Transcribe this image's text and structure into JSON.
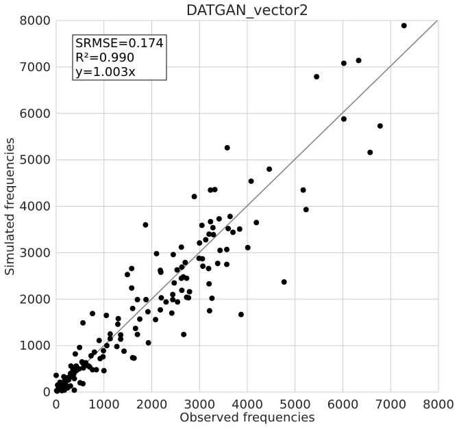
{
  "chart_data": {
    "type": "scatter",
    "title": "DATGAN_vector2",
    "xlabel": "Observed frequencies",
    "ylabel": "Simulated frequencies",
    "xlim": [
      0,
      8000
    ],
    "ylim": [
      0,
      8000
    ],
    "xticks": [
      0,
      1000,
      2000,
      3000,
      4000,
      5000,
      6000,
      7000,
      8000
    ],
    "yticks": [
      0,
      1000,
      2000,
      3000,
      4000,
      5000,
      6000,
      7000,
      8000
    ],
    "grid": true,
    "stats": [
      "SRMSE=0.174",
      "R²=0.990",
      "y=1.003x"
    ],
    "stats_position": "top-left",
    "fit_line": {
      "slope": 1.003,
      "color": "#808080"
    },
    "marker_color": "#000000",
    "grid_color": "#cccccc",
    "points": [
      [
        7280,
        7890
      ],
      [
        6330,
        7140
      ],
      [
        6020,
        7080
      ],
      [
        5450,
        6790
      ],
      [
        6780,
        5730
      ],
      [
        6020,
        5880
      ],
      [
        6570,
        5160
      ],
      [
        3580,
        5260
      ],
      [
        4460,
        4800
      ],
      [
        4080,
        4540
      ],
      [
        5170,
        4350
      ],
      [
        5230,
        3930
      ],
      [
        4770,
        2370
      ],
      [
        2890,
        4210
      ],
      [
        3230,
        4350
      ],
      [
        3320,
        4360
      ],
      [
        3410,
        3730
      ],
      [
        3640,
        3780
      ],
      [
        3230,
        3670
      ],
      [
        3050,
        3590
      ],
      [
        3280,
        3540
      ],
      [
        4190,
        3650
      ],
      [
        3600,
        3520
      ],
      [
        3840,
        3510
      ],
      [
        3700,
        3440
      ],
      [
        3200,
        3400
      ],
      [
        3130,
        3280
      ],
      [
        3290,
        3390
      ],
      [
        3000,
        3210
      ],
      [
        4010,
        3110
      ],
      [
        3430,
        3050
      ],
      [
        3570,
        3070
      ],
      [
        2990,
        2880
      ],
      [
        3060,
        2870
      ],
      [
        3380,
        2770
      ],
      [
        3570,
        2750
      ],
      [
        3070,
        2710
      ],
      [
        3190,
        2660
      ],
      [
        2700,
        2790
      ],
      [
        2620,
        3120
      ],
      [
        2450,
        2960
      ],
      [
        2180,
        2620
      ],
      [
        2100,
        2980
      ],
      [
        2630,
        2690
      ],
      [
        2530,
        2630
      ],
      [
        2190,
        2580
      ],
      [
        1870,
        3600
      ],
      [
        1580,
        2660
      ],
      [
        1490,
        2530
      ],
      [
        1580,
        2240
      ],
      [
        2470,
        2350
      ],
      [
        2620,
        2450
      ],
      [
        2660,
        2480
      ],
      [
        2730,
        2450
      ],
      [
        2440,
        2100
      ],
      [
        2630,
        2190
      ],
      [
        2790,
        2160
      ],
      [
        3200,
        2330
      ],
      [
        3260,
        2020
      ],
      [
        2730,
        2040
      ],
      [
        2770,
        2030
      ],
      [
        2540,
        1940
      ],
      [
        2300,
        1940
      ],
      [
        2440,
        1990
      ],
      [
        2200,
        2030
      ],
      [
        1880,
        1990
      ],
      [
        1700,
        1990
      ],
      [
        1600,
        1800
      ],
      [
        1920,
        1730
      ],
      [
        2180,
        1770
      ],
      [
        2420,
        1700
      ],
      [
        3210,
        1750
      ],
      [
        3870,
        1670
      ],
      [
        2670,
        1240
      ],
      [
        2080,
        1560
      ],
      [
        1750,
        1570
      ],
      [
        1660,
        1370
      ],
      [
        1300,
        1580
      ],
      [
        1290,
        1460
      ],
      [
        1050,
        1650
      ],
      [
        760,
        1690
      ],
      [
        560,
        1490
      ],
      [
        1130,
        1250
      ],
      [
        1130,
        1150
      ],
      [
        1350,
        1230
      ],
      [
        1350,
        1140
      ],
      [
        1700,
        1240
      ],
      [
        1930,
        1060
      ],
      [
        1270,
        980
      ],
      [
        1420,
        880
      ],
      [
        1600,
        740
      ],
      [
        1630,
        730
      ],
      [
        1060,
        1000
      ],
      [
        900,
        1110
      ],
      [
        800,
        860
      ],
      [
        990,
        890
      ],
      [
        980,
        760
      ],
      [
        920,
        720
      ],
      [
        840,
        480
      ],
      [
        760,
        480
      ],
      [
        1000,
        460
      ],
      [
        730,
        780
      ],
      [
        680,
        560
      ],
      [
        620,
        630
      ],
      [
        700,
        540
      ],
      [
        630,
        580
      ],
      [
        490,
        960
      ],
      [
        400,
        820
      ],
      [
        420,
        560
      ],
      [
        540,
        650
      ],
      [
        560,
        620
      ],
      [
        480,
        500
      ],
      [
        570,
        520
      ],
      [
        350,
        480
      ],
      [
        300,
        400
      ],
      [
        310,
        560
      ],
      [
        370,
        390
      ],
      [
        420,
        460
      ],
      [
        500,
        200
      ],
      [
        380,
        290
      ],
      [
        240,
        310
      ],
      [
        180,
        250
      ],
      [
        120,
        140
      ],
      [
        260,
        260
      ],
      [
        200,
        220
      ],
      [
        300,
        330
      ],
      [
        80,
        210
      ],
      [
        150,
        180
      ],
      [
        100,
        90
      ],
      [
        60,
        60
      ],
      [
        40,
        40
      ],
      [
        20,
        20
      ],
      [
        10,
        30
      ],
      [
        140,
        110
      ],
      [
        200,
        160
      ],
      [
        240,
        90
      ],
      [
        300,
        130
      ],
      [
        170,
        40
      ],
      [
        120,
        30
      ],
      [
        90,
        60
      ],
      [
        70,
        120
      ],
      [
        30,
        150
      ],
      [
        0,
        360
      ],
      [
        380,
        40
      ],
      [
        560,
        180
      ],
      [
        230,
        280
      ],
      [
        160,
        330
      ],
      [
        110,
        200
      ],
      [
        50,
        100
      ]
    ]
  }
}
